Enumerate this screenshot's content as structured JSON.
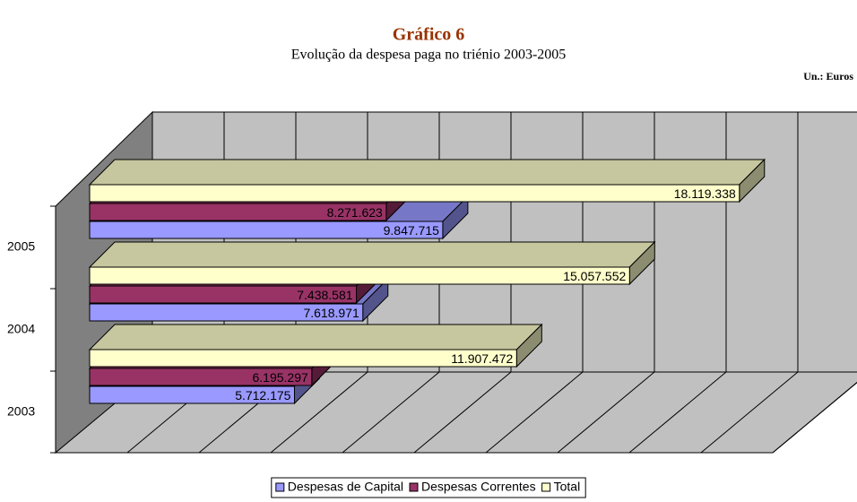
{
  "chart_data": {
    "type": "bar",
    "orientation": "horizontal",
    "title": "Gráfico 6",
    "subtitle": "Evolução da despesa paga no triénio 2003-2005",
    "unit_label": "Un.: Euros",
    "categories": [
      "2003",
      "2004",
      "2005"
    ],
    "series": [
      {
        "name": "Despesas de Capital",
        "color": "#9999ff",
        "values": [
          5712175,
          7618971,
          9847715
        ],
        "value_labels": [
          "5.712.175",
          "7.618.971",
          "9.847.715"
        ]
      },
      {
        "name": "Despesas Correntes",
        "color": "#993366",
        "values": [
          6195297,
          7438581,
          8271623
        ],
        "value_labels": [
          "6.195.297",
          "7.438.581",
          "8.271.623"
        ]
      },
      {
        "name": "Total",
        "color": "#ffffcc",
        "values": [
          11907472,
          15057552,
          18119338
        ],
        "value_labels": [
          "11.907.472",
          "15.057.552",
          "18.119.338"
        ]
      }
    ],
    "xlim": [
      0,
      20000000
    ],
    "xticks": [
      0,
      2000000,
      4000000,
      6000000,
      8000000,
      10000000,
      12000000,
      14000000,
      16000000,
      18000000,
      20000000
    ],
    "grid": true,
    "legend": "bottom"
  }
}
